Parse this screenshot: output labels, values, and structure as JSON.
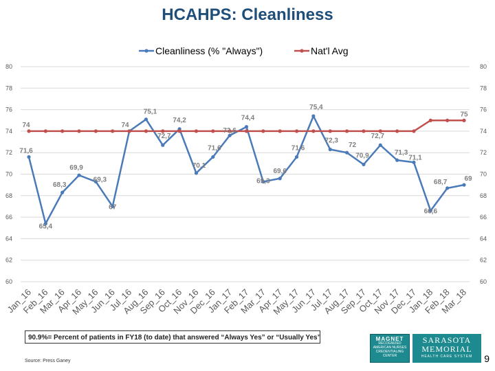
{
  "colors": {
    "title": "#1f4e79",
    "series_1": "#4a7ab8",
    "series_2": "#c0504d",
    "grid": "#d9d9d9",
    "point_label": "#7f7f7f",
    "logo": "#1d8a8f"
  },
  "chart_data": {
    "type": "line",
    "title": "HCAHPS: Cleanliness",
    "categories": [
      "Jan_16",
      "Feb_16",
      "Mar_16",
      "Apr_16",
      "May_16",
      "Jun_16",
      "Jul_16",
      "Aug_16",
      "Sep_16",
      "Oct_16",
      "Nov_16",
      "Dec_16",
      "Jan_17",
      "Feb_17",
      "Mar_17",
      "Apr_17",
      "May_17",
      "Jun_17",
      "Jul_17",
      "Aug_17",
      "Sep_17",
      "Oct_17",
      "Nov_17",
      "Dec_17",
      "Jan_18",
      "Feb_18",
      "Mar_18"
    ],
    "series": [
      {
        "name": "Cleanliness (% \"Always\")",
        "values": [
          71.6,
          65.4,
          68.3,
          69.9,
          69.3,
          67,
          74,
          75.1,
          72.7,
          74.2,
          70.1,
          71.6,
          73.6,
          74.4,
          69.3,
          69.6,
          71.6,
          75.4,
          72.3,
          72,
          70.9,
          72.7,
          71.3,
          71.1,
          66.6,
          68.7,
          69
        ],
        "labels": [
          "71,6",
          "65,4",
          "68,3",
          "69,9",
          "69,3",
          "67",
          "74",
          "75,1",
          "72,7",
          "74,2",
          "70,1",
          "71,6",
          "73,6",
          "74,4",
          "69,3",
          "69,6",
          "71,6",
          "75,4",
          "72,3",
          "72",
          "70,9",
          "72,7",
          "71,3",
          "71,1",
          "66,6",
          "68,7",
          "69"
        ]
      },
      {
        "name": "Nat'l Avg",
        "values": [
          74,
          74,
          74,
          74,
          74,
          74,
          74,
          74,
          74,
          74,
          74,
          74,
          74,
          74,
          74,
          74,
          74,
          74,
          74,
          74,
          74,
          74,
          74,
          74,
          75,
          75,
          75
        ],
        "labels": [
          "74",
          "",
          "",
          "",
          "",
          "",
          "",
          "",
          "",
          "",
          "",
          "",
          "",
          "",
          "",
          "",
          "",
          "",
          "",
          "",
          "",
          "",
          "",
          "",
          "",
          "",
          "75"
        ]
      }
    ],
    "ylim": [
      60,
      80
    ],
    "yticks": [
      "60",
      "62",
      "64",
      "66",
      "68",
      "70",
      "72",
      "74",
      "76",
      "78",
      "80"
    ],
    "grid": true,
    "legend": "top-center"
  },
  "footnote": "90.9%= Percent of patients in FY18 (to date) that answered “Always Yes” or “Usually Yes”",
  "source": "Source: Press Ganey",
  "page_number": "9",
  "logos": {
    "magnet": {
      "word": "MAGNET",
      "sub": "RECOGNIZED",
      "org": "AMERICAN NURSES CREDENTIALING CENTER"
    },
    "sarasota": {
      "line1": "SARASOTA",
      "line2": "MEMORIAL",
      "line3": "HEALTH CARE SYSTEM"
    }
  }
}
